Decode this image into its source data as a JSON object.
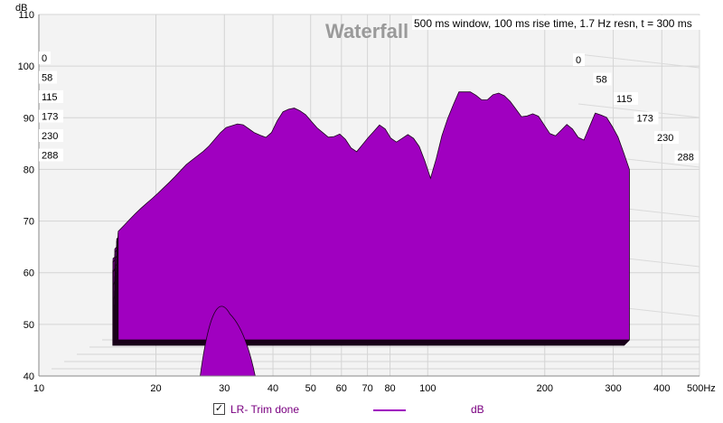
{
  "chart_data": {
    "type": "area",
    "title": "Waterfall",
    "info": "500 ms window, 100 ms rise time,  1.7 Hz resn, t = 300 ms",
    "ylabel": "dB",
    "xunit": "Hz",
    "y_ticks": [
      "40",
      "50",
      "60",
      "70",
      "80",
      "90",
      "100",
      "110"
    ],
    "ylim": [
      40,
      110
    ],
    "x_ticks": [
      "10",
      "20",
      "30",
      "40",
      "50",
      "60",
      "70",
      "80",
      "100",
      "200",
      "300",
      "400",
      "500Hz"
    ],
    "x_tick_values": [
      10,
      20,
      30,
      40,
      50,
      60,
      70,
      80,
      100,
      200,
      300,
      400,
      500
    ],
    "xlim": [
      10,
      500
    ],
    "x_scale": "log",
    "time_ticks_ms": [
      "0",
      "58",
      "115",
      "173",
      "230",
      "288"
    ],
    "grid": true,
    "series": [
      {
        "name": "LR- Trim done",
        "color": "#a000c0",
        "front_curve_hz": [
          16,
          18,
          20,
          22,
          24,
          27,
          30,
          33,
          36,
          39,
          42,
          45,
          48,
          52,
          56,
          60,
          65,
          70,
          76,
          82,
          90,
          96,
          102,
          110,
          120,
          130,
          140,
          150,
          160,
          175,
          190,
          210,
          230,
          250,
          270,
          290,
          310,
          330
        ],
        "front_curve_db": [
          68,
          72,
          75,
          78,
          81,
          84,
          88,
          89,
          87,
          86,
          91,
          92,
          91,
          88,
          86,
          87,
          83,
          86,
          89,
          85,
          87,
          84,
          78,
          88,
          95,
          95,
          93,
          95,
          94,
          90,
          91,
          86,
          89,
          85,
          91,
          90,
          86,
          80
        ]
      }
    ]
  },
  "legend": {
    "checked_mark": "✓",
    "series_label": "LR- Trim done",
    "unit_label": "dB"
  }
}
